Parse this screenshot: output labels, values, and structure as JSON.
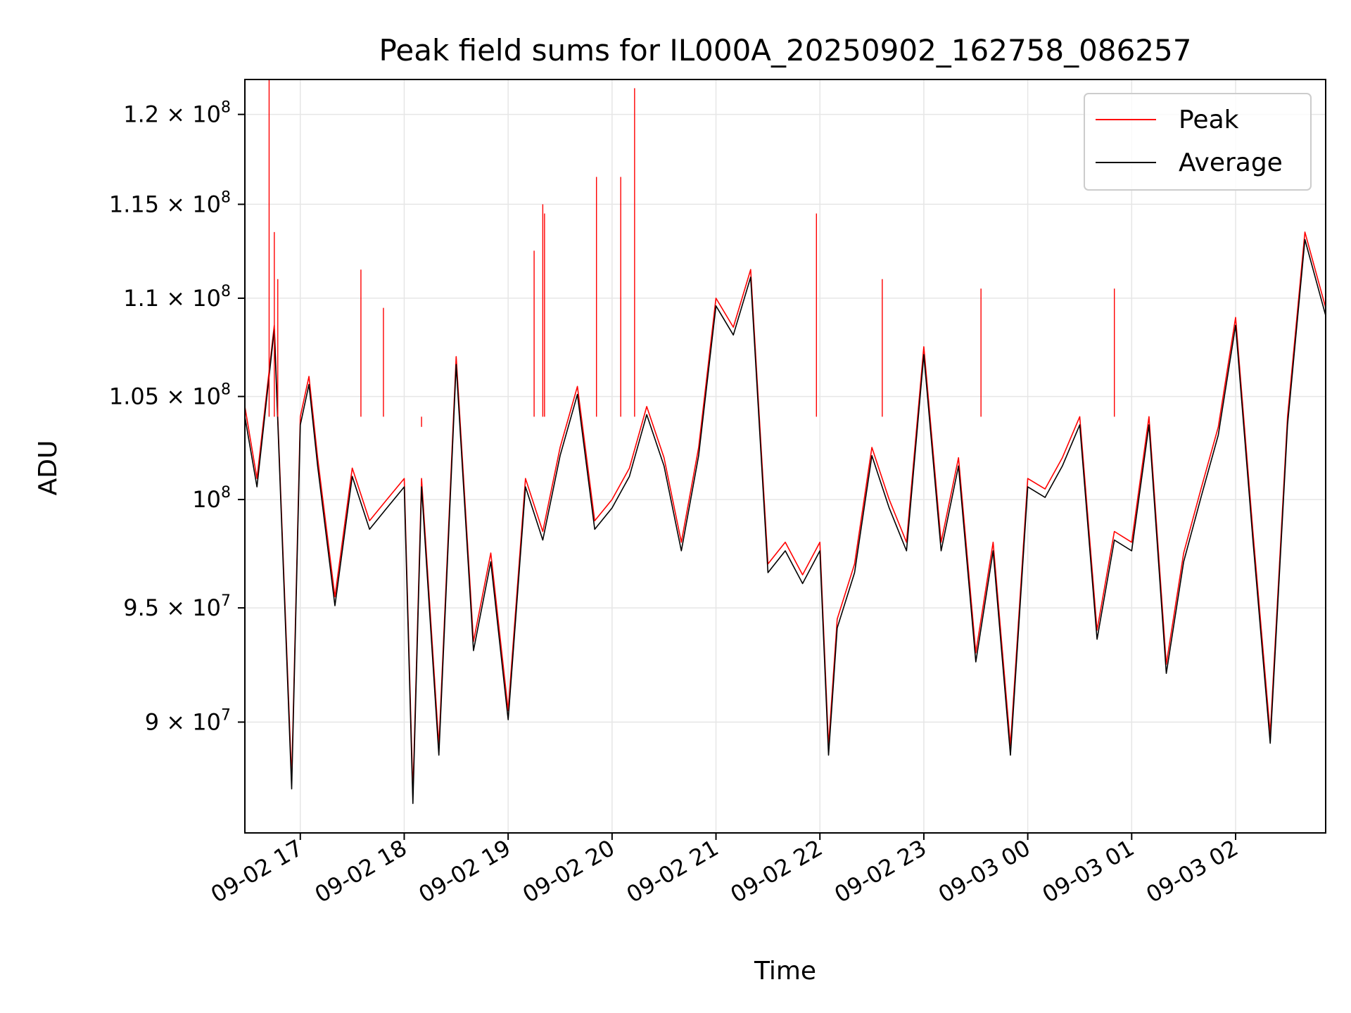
{
  "chart_data": {
    "type": "line",
    "title": "Peak field sums for IL000A_20250902_162758_086257",
    "xlabel": "Time",
    "ylabel": "ADU",
    "yscale": "log",
    "xlim": [
      "09-02 16:28",
      "09-03 02:52"
    ],
    "ylim": [
      85400000,
      122000000
    ],
    "x_ticks": [
      "09-02 17",
      "09-02 18",
      "09-02 19",
      "09-02 20",
      "09-02 21",
      "09-02 22",
      "09-02 23",
      "09-03 00",
      "09-03 01",
      "09-03 02"
    ],
    "y_ticks": [
      {
        "value": 90000000,
        "mantissa": "9",
        "exp": "7"
      },
      {
        "value": 95000000,
        "mantissa": "9.5",
        "exp": "7"
      },
      {
        "value": 100000000,
        "mantissa": "",
        "exp": "8"
      },
      {
        "value": 105000000,
        "mantissa": "1.05",
        "exp": "8"
      },
      {
        "value": 110000000,
        "mantissa": "1.1",
        "exp": "8"
      },
      {
        "value": 115000000,
        "mantissa": "1.15",
        "exp": "8"
      },
      {
        "value": 120000000,
        "mantissa": "1.2",
        "exp": "8"
      }
    ],
    "grid": true,
    "legend_position": "top-right",
    "colors": {
      "peak": "#ff0000",
      "average": "#000000"
    },
    "x": [
      "16:28",
      "16:35",
      "16:45",
      "16:55",
      "17:00",
      "17:05",
      "17:10",
      "17:20",
      "17:30",
      "17:40",
      "17:50",
      "18:00",
      "18:05",
      "18:10",
      "18:20",
      "18:30",
      "18:40",
      "18:50",
      "19:00",
      "19:10",
      "19:20",
      "19:30",
      "19:40",
      "19:50",
      "20:00",
      "20:10",
      "20:20",
      "20:30",
      "20:40",
      "20:50",
      "21:00",
      "21:10",
      "21:20",
      "21:30",
      "21:40",
      "21:50",
      "22:00",
      "22:05",
      "22:10",
      "22:20",
      "22:30",
      "22:40",
      "22:50",
      "23:00",
      "23:10",
      "23:20",
      "23:30",
      "23:40",
      "23:50",
      "00:00",
      "00:10",
      "00:20",
      "00:30",
      "00:40",
      "00:50",
      "01:00",
      "01:10",
      "01:20",
      "01:30",
      "01:40",
      "01:50",
      "02:00",
      "02:10",
      "02:20",
      "02:30",
      "02:40",
      "02:52"
    ],
    "series": [
      {
        "name": "Peak",
        "values": [
          104500000,
          101000000,
          108600000,
          87600000,
          104000000,
          106000000,
          102000000,
          95500000,
          101500000,
          99000000,
          100000000,
          101000000,
          87000000,
          101000000,
          89000000,
          107000000,
          93500000,
          97500000,
          90500000,
          101000000,
          98500000,
          102500000,
          105500000,
          99000000,
          100000000,
          101500000,
          104500000,
          102000000,
          98000000,
          102500000,
          110000000,
          108500000,
          111500000,
          97000000,
          98000000,
          96500000,
          98000000,
          89000000,
          94500000,
          97000000,
          102500000,
          100000000,
          98000000,
          107500000,
          98000000,
          102000000,
          93000000,
          98000000,
          89000000,
          101000000,
          100500000,
          102000000,
          104000000,
          94000000,
          98500000,
          98000000,
          104000000,
          92500000,
          97500000,
          100500000,
          103500000,
          109000000,
          98500000,
          89500000,
          104000000,
          113500000,
          109500000
        ]
      },
      {
        "name": "Average",
        "values": [
          104000000,
          100600000,
          108400000,
          87200000,
          103600000,
          105600000,
          101600000,
          95100000,
          101100000,
          98600000,
          99600000,
          100600000,
          86600000,
          100600000,
          88600000,
          106600000,
          93100000,
          97100000,
          90100000,
          100600000,
          98100000,
          102100000,
          105100000,
          98600000,
          99600000,
          101100000,
          104100000,
          101600000,
          97600000,
          102100000,
          109600000,
          108100000,
          111100000,
          96600000,
          97600000,
          96100000,
          97600000,
          88600000,
          94100000,
          96600000,
          102100000,
          99600000,
          97600000,
          107100000,
          97600000,
          101600000,
          92600000,
          97600000,
          88600000,
          100600000,
          100100000,
          101600000,
          103600000,
          93600000,
          98100000,
          97600000,
          103600000,
          92100000,
          97100000,
          100100000,
          103100000,
          108600000,
          98100000,
          89100000,
          103600000,
          113100000,
          109100000
        ]
      }
    ],
    "spikes": [
      {
        "x": "16:42",
        "value": 122000000
      },
      {
        "x": "16:45",
        "value": 113500000
      },
      {
        "x": "16:47",
        "value": 111000000
      },
      {
        "x": "17:35",
        "value": 111500000
      },
      {
        "x": "17:48",
        "value": 109500000
      },
      {
        "x": "18:10",
        "value": 103500000
      },
      {
        "x": "19:15",
        "value": 112500000
      },
      {
        "x": "19:20",
        "value": 115000000
      },
      {
        "x": "19:21",
        "value": 114500000
      },
      {
        "x": "19:51",
        "value": 116500000
      },
      {
        "x": "20:05",
        "value": 116500000
      },
      {
        "x": "20:13",
        "value": 121500000
      },
      {
        "x": "21:58",
        "value": 114500000
      },
      {
        "x": "22:36",
        "value": 111000000
      },
      {
        "x": "23:33",
        "value": 110500000
      },
      {
        "x": "00:50",
        "value": 110500000
      }
    ]
  }
}
